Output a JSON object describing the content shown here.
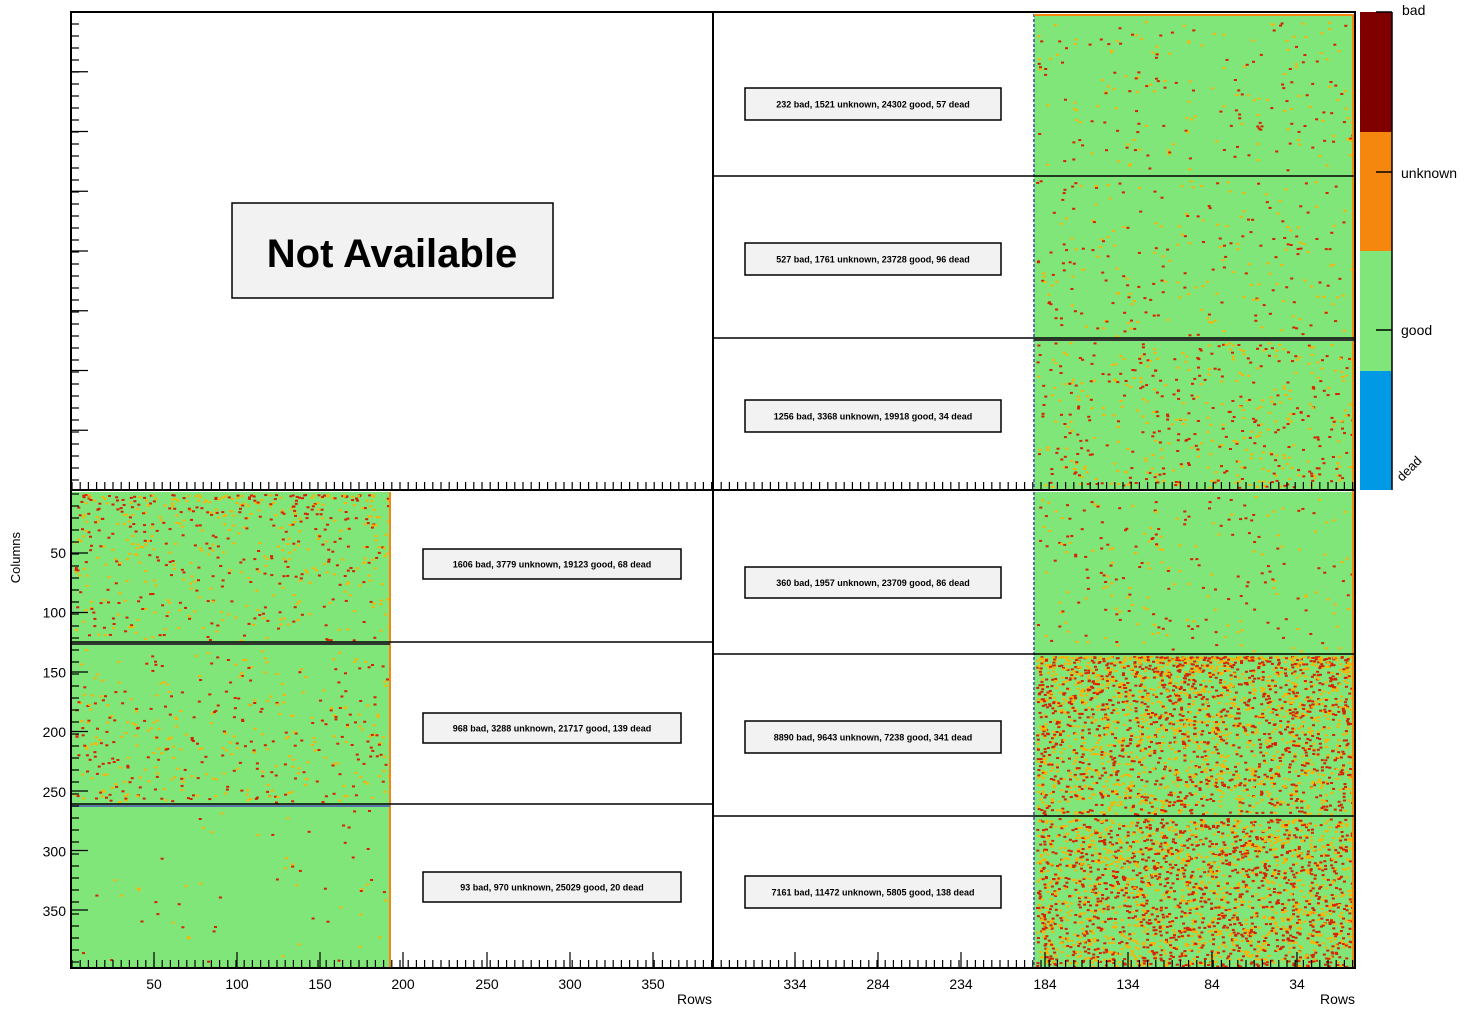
{
  "chart_data": {
    "type": "heatmap",
    "title": "",
    "na_label": "Not Available",
    "axes": {
      "ylabel": "Columns",
      "xlabel_left": "Rows",
      "xlabel_right": "Rows",
      "y_ticks": [
        "50",
        "100",
        "150",
        "200",
        "250",
        "300",
        "350"
      ],
      "x_ticks_left": [
        "50",
        "100",
        "150",
        "200",
        "250",
        "300",
        "350"
      ],
      "x_ticks_right": [
        "334",
        "284",
        "234",
        "184",
        "134",
        "84",
        "34"
      ]
    },
    "legend": {
      "labels": [
        "bad",
        "unknown",
        "good",
        "dead"
      ],
      "colors": {
        "bad": "#800000",
        "unknown": "#f5870f",
        "good": "#80e67a",
        "dead": "#0099e6",
        "pixel": "#d92000",
        "pixel_halo": "#ffb300",
        "box_fill": "#f2f2f2"
      }
    },
    "panels": [
      {
        "id": "top-right-1",
        "label": "232 bad, 1521 unknown, 24302 good, 57 dead",
        "bad": 232,
        "unknown": 1521,
        "good": 24302,
        "dead": 57
      },
      {
        "id": "top-right-2",
        "label": "527 bad, 1761 unknown, 23728 good, 96 dead",
        "bad": 527,
        "unknown": 1761,
        "good": 23728,
        "dead": 96
      },
      {
        "id": "top-right-3",
        "label": "1256 bad, 3368 unknown, 19918 good, 34 dead",
        "bad": 1256,
        "unknown": 3368,
        "good": 19918,
        "dead": 34
      },
      {
        "id": "bottom-left-1",
        "label": "1606 bad, 3779 unknown, 19123 good, 68 dead",
        "bad": 1606,
        "unknown": 3779,
        "good": 19123,
        "dead": 68
      },
      {
        "id": "bottom-left-2",
        "label": "968 bad, 3288 unknown, 21717 good, 139 dead",
        "bad": 968,
        "unknown": 3288,
        "good": 21717,
        "dead": 139
      },
      {
        "id": "bottom-left-3",
        "label": "93 bad, 970 unknown, 25029 good, 20 dead",
        "bad": 93,
        "unknown": 970,
        "good": 25029,
        "dead": 20
      },
      {
        "id": "bottom-right-1",
        "label": "360 bad, 1957 unknown, 23709 good, 86 dead",
        "bad": 360,
        "unknown": 1957,
        "good": 23709,
        "dead": 86
      },
      {
        "id": "bottom-right-2",
        "label": "8890 bad, 9643 unknown, 7238 good, 341 dead",
        "bad": 8890,
        "unknown": 9643,
        "good": 7238,
        "dead": 341
      },
      {
        "id": "bottom-right-3",
        "label": "7161 bad, 11472 unknown, 5805 good, 138 dead",
        "bad": 7161,
        "unknown": 11472,
        "good": 5805,
        "dead": 138
      }
    ]
  }
}
